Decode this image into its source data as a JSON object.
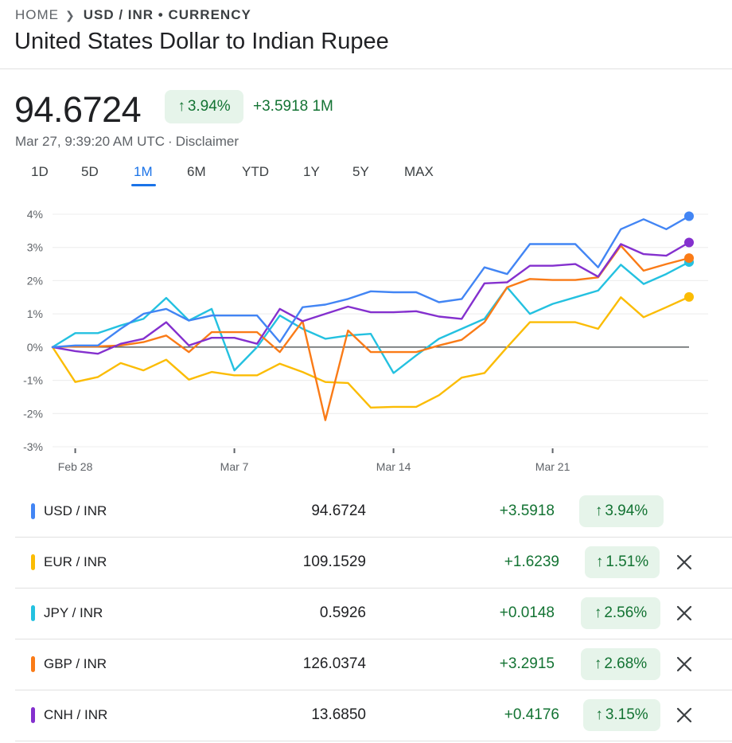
{
  "breadcrumb": {
    "home": "HOME",
    "current": "USD / INR • CURRENCY"
  },
  "title": "United States Dollar to Indian Rupee",
  "quote": {
    "price": "94.6724",
    "pct_change": "3.94%",
    "abs_change": "+3.5918 1M",
    "timestamp": "Mar 27, 9:39:20 AM UTC",
    "disclaimer": "Disclaimer"
  },
  "ranges": [
    {
      "label": "1D",
      "active": false
    },
    {
      "label": "5D",
      "active": false
    },
    {
      "label": "1M",
      "active": true
    },
    {
      "label": "6M",
      "active": false
    },
    {
      "label": "YTD",
      "active": false
    },
    {
      "label": "1Y",
      "active": false
    },
    {
      "label": "5Y",
      "active": false
    },
    {
      "label": "MAX",
      "active": false
    }
  ],
  "colors": {
    "up_green": "#137333",
    "up_chip_bg": "#e6f4ea",
    "accent": "#1a73e8",
    "usd": "#4285f4",
    "eur": "#fbbc04",
    "jpy": "#24c1e0",
    "gbp": "#fa7b17",
    "cnh": "#8430ce"
  },
  "chart_data": {
    "type": "line",
    "y_unit": "%",
    "ylim": [
      -3,
      4
    ],
    "y_ticks": [
      "4%",
      "3%",
      "2%",
      "1%",
      "0%",
      "-1%",
      "-2%",
      "-3%"
    ],
    "x_tick_labels": [
      "Feb 28",
      "Mar 7",
      "Mar 14",
      "Mar 21"
    ],
    "baseline": 0,
    "series": [
      {
        "name": "USD / INR",
        "color": "#4285f4",
        "values": [
          0,
          0.05,
          0.05,
          0.55,
          1.0,
          1.15,
          0.8,
          0.95,
          0.95,
          0.95,
          0.15,
          1.2,
          1.28,
          1.45,
          1.68,
          1.65,
          1.65,
          1.35,
          1.45,
          2.4,
          2.2,
          3.1,
          3.1,
          3.1,
          2.4,
          3.55,
          3.85,
          3.55,
          3.94
        ]
      },
      {
        "name": "EUR / INR",
        "color": "#fbbc04",
        "values": [
          0,
          -1.05,
          -0.9,
          -0.48,
          -0.7,
          -0.38,
          -0.98,
          -0.75,
          -0.85,
          -0.85,
          -0.5,
          -0.75,
          -1.05,
          -1.08,
          -1.82,
          -1.8,
          -1.8,
          -1.45,
          -0.92,
          -0.78,
          0.0,
          0.75,
          0.75,
          0.75,
          0.55,
          1.5,
          0.9,
          1.2,
          1.51
        ]
      },
      {
        "name": "JPY / INR",
        "color": "#24c1e0",
        "values": [
          0,
          0.42,
          0.42,
          0.65,
          0.85,
          1.48,
          0.8,
          1.15,
          -0.7,
          0.0,
          0.95,
          0.55,
          0.25,
          0.35,
          0.4,
          -0.78,
          -0.25,
          0.25,
          0.55,
          0.85,
          1.8,
          1.0,
          1.3,
          1.5,
          1.7,
          2.48,
          1.9,
          2.2,
          2.56
        ]
      },
      {
        "name": "GBP / INR",
        "color": "#fa7b17",
        "values": [
          0,
          0.02,
          0.02,
          0.05,
          0.15,
          0.35,
          -0.15,
          0.45,
          0.45,
          0.45,
          -0.15,
          0.78,
          -2.2,
          0.5,
          -0.15,
          -0.15,
          -0.15,
          0.05,
          0.22,
          0.75,
          1.8,
          2.05,
          2.02,
          2.02,
          2.1,
          3.05,
          2.3,
          2.5,
          2.68
        ]
      },
      {
        "name": "CNH / INR",
        "color": "#8430ce",
        "values": [
          0,
          -0.12,
          -0.2,
          0.1,
          0.25,
          0.75,
          0.05,
          0.28,
          0.28,
          0.1,
          1.15,
          0.78,
          1.0,
          1.22,
          1.05,
          1.05,
          1.08,
          0.92,
          0.85,
          1.92,
          1.95,
          2.45,
          2.45,
          2.5,
          2.12,
          3.1,
          2.8,
          2.75,
          3.15
        ]
      }
    ]
  },
  "comparison": [
    {
      "pair": "USD / INR",
      "color": "#4285f4",
      "value": "94.6724",
      "change": "+3.5918",
      "pct": "3.94%",
      "removable": false
    },
    {
      "pair": "EUR / INR",
      "color": "#fbbc04",
      "value": "109.1529",
      "change": "+1.6239",
      "pct": "1.51%",
      "removable": true
    },
    {
      "pair": "JPY / INR",
      "color": "#24c1e0",
      "value": "0.5926",
      "change": "+0.0148",
      "pct": "2.56%",
      "removable": true
    },
    {
      "pair": "GBP / INR",
      "color": "#fa7b17",
      "value": "126.0374",
      "change": "+3.2915",
      "pct": "2.68%",
      "removable": true
    },
    {
      "pair": "CNH / INR",
      "color": "#8430ce",
      "value": "13.6850",
      "change": "+0.4176",
      "pct": "3.15%",
      "removable": true
    }
  ]
}
